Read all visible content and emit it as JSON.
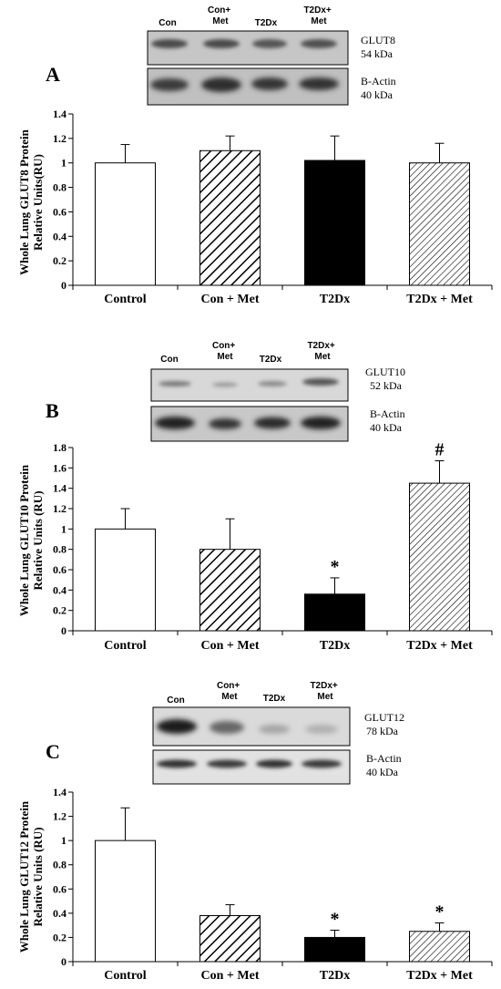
{
  "colors": {
    "axis": "#000000",
    "bar_fill_black": "#000000",
    "bar_fill_white": "#ffffff",
    "hatch": "#000000"
  },
  "chart_data": [
    {
      "type": "bar",
      "panel": "A",
      "title": "",
      "ylabel": "Whole Lung GLUT8 Protein Relative Units(RU)",
      "ylabel_lines": [
        "Whole Lung GLUT8 Protein",
        "Relative Units(RU)"
      ],
      "categories": [
        "Control",
        "Con + Met",
        "T2Dx",
        "T2Dx + Met"
      ],
      "values": [
        1.0,
        1.1,
        1.02,
        1.0
      ],
      "errors": [
        0.15,
        0.12,
        0.2,
        0.16
      ],
      "fills": [
        "white",
        "hatch",
        "black",
        "hatch-fine"
      ],
      "annotations": [
        "",
        "",
        "",
        ""
      ],
      "ylim": [
        0,
        1.4
      ],
      "yticks": [
        "0",
        "0.2",
        "0.4",
        "0.6",
        "0.8",
        "1",
        "1.2",
        "1.4"
      ],
      "grid": false,
      "blot": {
        "lanes": [
          "Con",
          "Con+ Met",
          "T2Dx",
          "T2Dx+ Met"
        ],
        "target_name": "GLUT8",
        "target_kda": "54 kDa",
        "control_name": "B-Actin",
        "control_kda": "40 kDa"
      }
    },
    {
      "type": "bar",
      "panel": "B",
      "title": "",
      "ylabel": "Whole Lung GLUT10 Protein Relative Units (RU)",
      "ylabel_lines": [
        "Whole Lung GLUT10 Protein",
        "Relative Units (RU)"
      ],
      "categories": [
        "Control",
        "Con + Met",
        "T2Dx",
        "T2Dx + Met"
      ],
      "values": [
        1.0,
        0.8,
        0.36,
        1.45
      ],
      "errors": [
        0.2,
        0.3,
        0.16,
        0.22
      ],
      "fills": [
        "white",
        "hatch",
        "black",
        "hatch-fine"
      ],
      "annotations": [
        "",
        "",
        "*",
        "#"
      ],
      "ylim": [
        0,
        1.8
      ],
      "yticks": [
        "0",
        "0.2",
        "0.4",
        "0.6",
        "0.8",
        "1",
        "1.2",
        "1.4",
        "1.6",
        "1.8"
      ],
      "grid": false,
      "blot": {
        "lanes": [
          "Con",
          "Con+ Met",
          "T2Dx",
          "T2Dx+ Met"
        ],
        "target_name": "GLUT10",
        "target_kda": "52 kDa",
        "control_name": "B-Actin",
        "control_kda": "40 kDa"
      }
    },
    {
      "type": "bar",
      "panel": "C",
      "title": "",
      "ylabel": "Whole Lung GLUT12 Protein Relative Units (RU)",
      "ylabel_lines": [
        "Whole Lung GLUT12 Protein",
        "Relative Units (RU)"
      ],
      "categories": [
        "Control",
        "Con + Met",
        "T2Dx",
        "T2Dx + Met"
      ],
      "values": [
        1.0,
        0.38,
        0.2,
        0.25
      ],
      "errors": [
        0.27,
        0.09,
        0.06,
        0.07
      ],
      "fills": [
        "white",
        "hatch",
        "black",
        "hatch-fine"
      ],
      "annotations": [
        "",
        "",
        "*",
        "*"
      ],
      "ylim": [
        0,
        1.4
      ],
      "yticks": [
        "0",
        "0.2",
        "0.4",
        "0.6",
        "0.8",
        "1",
        "1.2",
        "1.4"
      ],
      "grid": false,
      "blot": {
        "lanes": [
          "Con",
          "Con+ Met",
          "T2Dx",
          "T2Dx+ Met"
        ],
        "target_name": "GLUT12",
        "target_kda": "78 kDa",
        "control_name": "B-Actin",
        "control_kda": "40 kDa"
      }
    }
  ]
}
